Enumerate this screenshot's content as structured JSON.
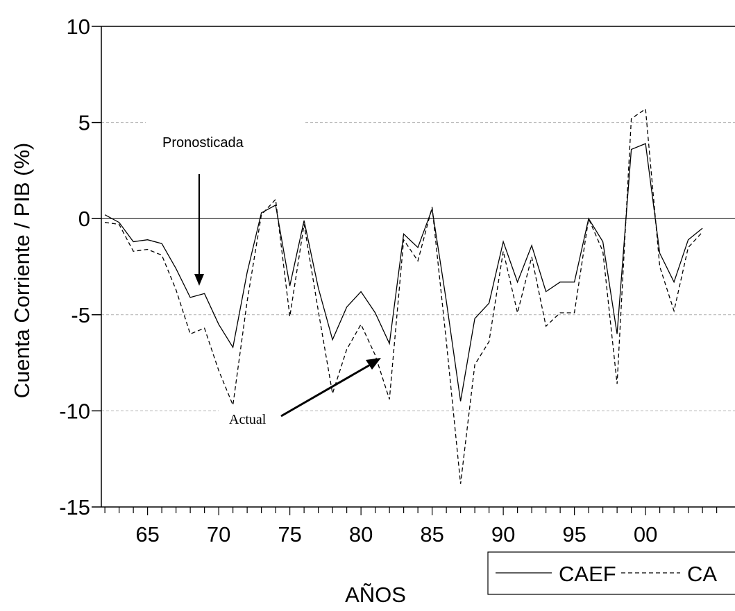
{
  "chart_data": {
    "type": "line",
    "title": "",
    "xlabel": "AÑOS",
    "ylabel": "Cuenta Corriente / PIB (%)",
    "xlim": [
      1962,
      2006
    ],
    "ylim": [
      -15,
      10
    ],
    "yticks": [
      10,
      5,
      0,
      -5,
      -10,
      -15
    ],
    "ytick_labels": [
      "10",
      "5",
      "0",
      "-5",
      "-10",
      "-15"
    ],
    "xticks": [
      1965,
      1970,
      1975,
      1980,
      1985,
      1990,
      1995,
      2000
    ],
    "xtick_labels": [
      "65",
      "70",
      "75",
      "80",
      "85",
      "90",
      "95",
      "00"
    ],
    "grid": "horizontal dashed",
    "legend_position": "bottom-right",
    "x": [
      1962,
      1963,
      1964,
      1965,
      1966,
      1967,
      1968,
      1969,
      1970,
      1971,
      1972,
      1973,
      1974,
      1975,
      1976,
      1977,
      1978,
      1979,
      1980,
      1981,
      1982,
      1983,
      1984,
      1985,
      1986,
      1987,
      1988,
      1989,
      1990,
      1991,
      1992,
      1993,
      1994,
      1995,
      1996,
      1997,
      1998,
      1999,
      2000,
      2001,
      2002,
      2003,
      2004
    ],
    "series": [
      {
        "name": "CAEF",
        "style": "solid",
        "values": [
          0.2,
          -0.2,
          -1.2,
          -1.1,
          -1.3,
          -2.6,
          -4.1,
          -3.9,
          -5.5,
          -6.7,
          -2.8,
          0.3,
          0.7,
          -3.5,
          -0.1,
          -3.6,
          -6.3,
          -4.6,
          -3.8,
          -4.9,
          -6.5,
          -0.8,
          -1.5,
          0.5,
          -4.3,
          -9.5,
          -5.2,
          -4.4,
          -1.2,
          -3.3,
          -1.4,
          -3.8,
          -3.3,
          -3.3,
          0.0,
          -1.2,
          -6.0,
          3.6,
          3.9,
          -1.8,
          -3.3,
          -1.1,
          -0.5
        ]
      },
      {
        "name": "CA",
        "style": "dashed",
        "values": [
          -0.2,
          -0.3,
          -1.7,
          -1.6,
          -1.9,
          -3.7,
          -6.0,
          -5.7,
          -7.9,
          -9.7,
          -4.3,
          0.2,
          1.0,
          -5.1,
          -0.3,
          -4.8,
          -9.1,
          -6.8,
          -5.5,
          -7.1,
          -9.4,
          -1.1,
          -2.2,
          0.6,
          -6.4,
          -13.8,
          -7.6,
          -6.4,
          -1.7,
          -4.9,
          -2.0,
          -5.6,
          -4.9,
          -4.9,
          0.0,
          -1.7,
          -8.6,
          5.2,
          5.7,
          -2.5,
          -4.8,
          -1.5,
          -0.7
        ]
      }
    ],
    "annotations": [
      {
        "text": "Pronosticada"
      },
      {
        "text": "Actual"
      }
    ]
  }
}
